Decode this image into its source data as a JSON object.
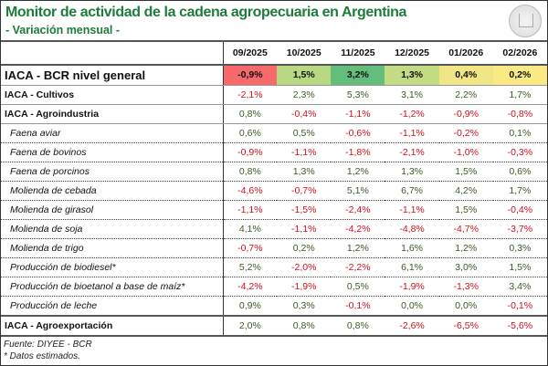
{
  "header": {
    "title": "Monitor de actividad de la cadena agropecuaria en Argentina",
    "subtitle": "- Variación mensual -",
    "logo": "BCR seal"
  },
  "colors": {
    "title": "#1e7b3a",
    "positive_text": "#3a5a24",
    "negative_text": "#d0101c"
  },
  "chart_data": {
    "type": "table",
    "columns": [
      "09/2025",
      "10/2025",
      "11/2025",
      "12/2025",
      "01/2026",
      "02/2026"
    ],
    "rows": [
      {
        "label": "IACA - BCR nivel general",
        "kind": "general",
        "values": [
          "-0,9%",
          "1,5%",
          "3,2%",
          "1,3%",
          "0,4%",
          "0,2%"
        ],
        "heat_colors": [
          "#f8696b",
          "#b8d883",
          "#63be7b",
          "#c3db82",
          "#f1e685",
          "#fbea84"
        ]
      },
      {
        "label": "IACA - Cultivos",
        "kind": "main",
        "values": [
          "-2,1%",
          "2,3%",
          "5,3%",
          "3,1%",
          "2,2%",
          "1,7%"
        ]
      },
      {
        "label": "IACA - Agroindustria",
        "kind": "main",
        "values": [
          "0,8%",
          "-0,4%",
          "-1,1%",
          "-1,2%",
          "-0,9%",
          "-0,8%"
        ]
      },
      {
        "label": "Faena aviar",
        "kind": "sub",
        "values": [
          "0,6%",
          "0,5%",
          "-0,6%",
          "-1,1%",
          "-0,2%",
          "0,1%"
        ]
      },
      {
        "label": "Faena de bovinos",
        "kind": "sub",
        "values": [
          "-0,9%",
          "-1,1%",
          "-1,8%",
          "-2,1%",
          "-1,0%",
          "-0,3%"
        ]
      },
      {
        "label": "Faena de porcinos",
        "kind": "sub",
        "values": [
          "0,8%",
          "1,3%",
          "1,2%",
          "1,3%",
          "1,5%",
          "0,6%"
        ]
      },
      {
        "label": "Molienda de cebada",
        "kind": "sub",
        "values": [
          "-4,6%",
          "-0,7%",
          "5,1%",
          "6,7%",
          "4,2%",
          "1,7%"
        ]
      },
      {
        "label": "Molienda de girasol",
        "kind": "sub",
        "values": [
          "-1,1%",
          "-1,5%",
          "-2,4%",
          "-1,1%",
          "1,5%",
          "-0,4%"
        ]
      },
      {
        "label": "Molienda de soja",
        "kind": "sub",
        "values": [
          "4,1%",
          "-1,1%",
          "-4,2%",
          "-4,8%",
          "-4,7%",
          "-3,7%"
        ]
      },
      {
        "label": "Molienda de trigo",
        "kind": "sub",
        "values": [
          "-0,7%",
          "0,2%",
          "1,2%",
          "1,6%",
          "1,2%",
          "0,3%"
        ]
      },
      {
        "label": "Producción de biodiesel*",
        "kind": "sub",
        "values": [
          "5,2%",
          "-2,0%",
          "-2,2%",
          "6,1%",
          "3,0%",
          "1,5%"
        ]
      },
      {
        "label": "Producción de bioetanol a base de maíz*",
        "kind": "sub",
        "values": [
          "-4,2%",
          "-1,9%",
          "0,5%",
          "-1,9%",
          "-1,3%",
          "3,4%"
        ]
      },
      {
        "label": "Producción de leche",
        "kind": "sub",
        "values": [
          "0,9%",
          "0,3%",
          "-0,1%",
          "0,0%",
          "0,0%",
          "-0,1%"
        ]
      },
      {
        "label": "IACA - Agroexportación",
        "kind": "export",
        "values": [
          "2,0%",
          "0,8%",
          "0,8%",
          "-2,6%",
          "-6,5%",
          "-5,6%"
        ]
      }
    ]
  },
  "footer": {
    "source": "Fuente: DIYEE - BCR",
    "note": "* Datos estimados."
  }
}
